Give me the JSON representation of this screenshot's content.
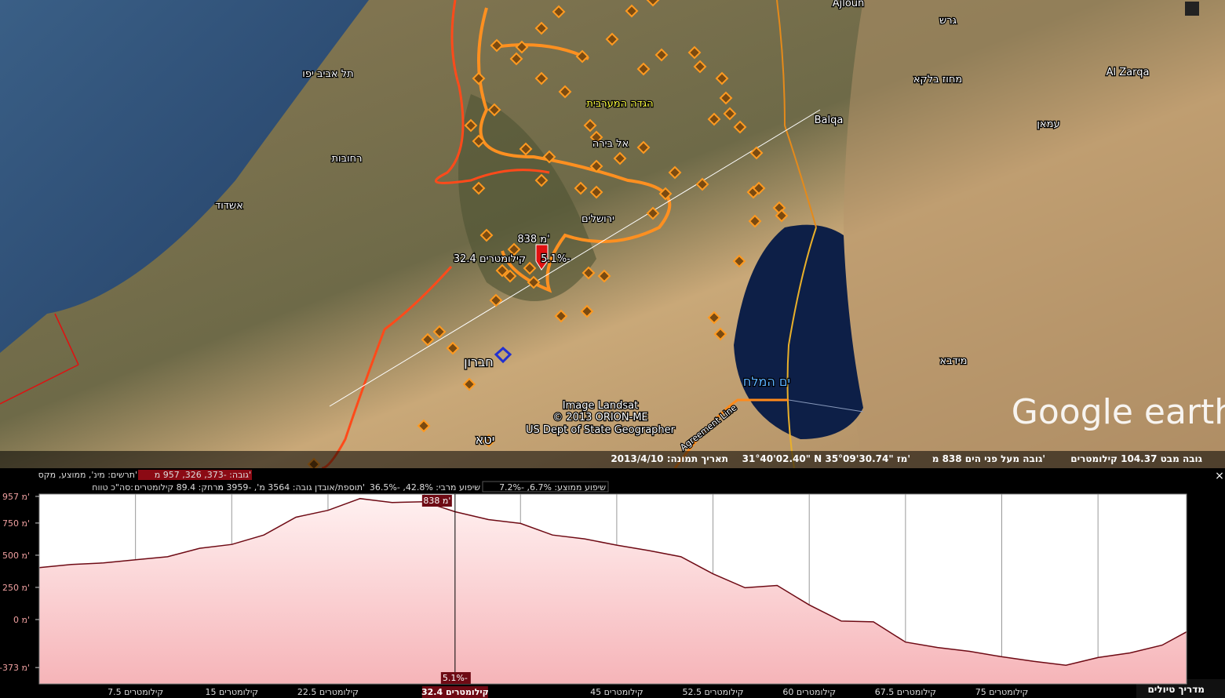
{
  "map": {
    "labels": [
      "Ajloun",
      "גרש",
      "תל אביב יפו",
      "הגדה המערבית",
      "Balqa",
      "מחוז בלקא",
      "Al Zarqa",
      "עמאן",
      "אל בירה",
      "רחובות",
      "אשדוד",
      "ירושלים",
      "חברון",
      "ים המלח",
      "מידבא",
      "יטא",
      "Agreement Line"
    ],
    "cursor_elevation": "838 מ'",
    "cursor_distance": "32.4 קילומטרים",
    "cursor_slope": "5.1%-",
    "credits": [
      "Image Landsat",
      "© 2013 ORION-ME",
      "US Dept of State Geographer"
    ],
    "logo": "Google earth"
  },
  "status_bar": {
    "eye_altitude": "גובה מבט 104.37 קילומטרים",
    "elevation": "גובה מעל פני הים 838 מ'",
    "coordinates": "31°40'02.40\" N  35°09'30.74\" מז'",
    "imagery_date": "תאריך תמונה: 2013/4/10"
  },
  "profile": {
    "elevation_summary": "גובה: -373, 326, 957 מ'",
    "graph_legend": "תרשים: מינ', ממוצע, מקס'",
    "avg_slope": "שיפוע ממוצע: 6.7%, -7.2%",
    "max_slope": "שיפוע מרבי: 42.8%, -36.5%",
    "gain_loss": "תוספת/אובדן גובה: 3564 מ', -3959 מ'",
    "distance": "מרחק: 89.4 קילומטרים",
    "range_total": "סה\"כ טווח:",
    "close": "×",
    "marker_elevation": "838 מ'",
    "marker_slope": "5.1%-",
    "marker_distance": "32.4 קילומטרים",
    "tour_guide": "מדריך טיולים"
  },
  "chart_data": {
    "type": "area",
    "x": [
      0,
      2.5,
      5,
      7.5,
      10,
      12.5,
      15,
      17.5,
      20,
      22.5,
      25,
      27.5,
      30,
      32.4,
      35,
      37.5,
      40,
      42.5,
      45,
      47.5,
      50,
      52.5,
      55,
      57.5,
      60,
      62.5,
      65,
      67.5,
      70,
      72.5,
      75,
      77.5,
      80,
      82.5,
      85,
      87.5,
      89.4
    ],
    "values": [
      404,
      428,
      440,
      464,
      488,
      554,
      584,
      657,
      795,
      849,
      940,
      910,
      916,
      838,
      777,
      747,
      657,
      627,
      578,
      536,
      488,
      355,
      247,
      265,
      114,
      -12,
      -18,
      -175,
      -217,
      -247,
      -289,
      -325,
      -355,
      -295,
      -259,
      -199,
      -96
    ],
    "color": "#6e0a14",
    "xlim": [
      0,
      89.4
    ],
    "ylim": [
      -500,
      975
    ],
    "yticks": [
      {
        "value": 957,
        "label": "957 מ'"
      },
      {
        "value": 750,
        "label": "750 מ'"
      },
      {
        "value": 500,
        "label": "500 מ'"
      },
      {
        "value": 250,
        "label": "250 מ'"
      },
      {
        "value": 0,
        "label": "0 מ'"
      },
      {
        "value": -373,
        "label": "-373 מ'"
      }
    ],
    "xticks": [
      {
        "value": 7.5,
        "label": "7.5 קילומטרים"
      },
      {
        "value": 15,
        "label": "15 קילומטרים"
      },
      {
        "value": 22.5,
        "label": "22.5 קילומטרים"
      },
      {
        "value": 45,
        "label": "45 קילומטרים"
      },
      {
        "value": 52.5,
        "label": "52.5 קילומטרים"
      },
      {
        "value": 60,
        "label": "60 קילומטרים"
      },
      {
        "value": 67.5,
        "label": "67.5 קילומטרים"
      },
      {
        "value": 75,
        "label": "75 קילומטרים"
      }
    ],
    "xgrid": [
      7.5,
      15,
      22.5,
      30,
      37.5,
      45,
      52.5,
      60,
      67.5,
      75,
      82.5
    ],
    "cursor_x": 32.4
  }
}
